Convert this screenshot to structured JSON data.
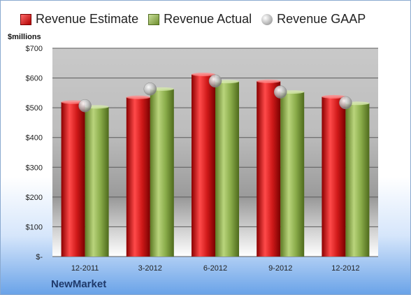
{
  "legend": {
    "estimate_label": "Revenue Estimate",
    "actual_label": "Revenue Actual",
    "gaap_label": "Revenue GAAP"
  },
  "unit_label": "$millions",
  "company": "NewMarket",
  "colors": {
    "estimate": "#c41414",
    "actual": "#8aac4a",
    "gaap": "#b0b0b0"
  },
  "chart_data": {
    "type": "bar",
    "categories": [
      "12-2011",
      "3-2012",
      "6-2012",
      "9-2012",
      "12-2012"
    ],
    "series": [
      {
        "name": "Revenue Estimate",
        "values": [
          519,
          535,
          612,
          589,
          537
        ]
      },
      {
        "name": "Revenue Actual",
        "values": [
          503,
          563,
          588,
          553,
          515
        ]
      },
      {
        "name": "Revenue GAAP",
        "values": [
          507,
          563,
          590,
          553,
          517
        ]
      }
    ],
    "ylim": [
      0,
      700
    ],
    "yticks": [
      0,
      100,
      200,
      300,
      400,
      500,
      600,
      700
    ],
    "ytick_labels": [
      "$-",
      "$100",
      "$200",
      "$300",
      "$400",
      "$500",
      "$600",
      "$700"
    ],
    "ylabel": "$millions",
    "grid": true,
    "legend_position": "top"
  }
}
